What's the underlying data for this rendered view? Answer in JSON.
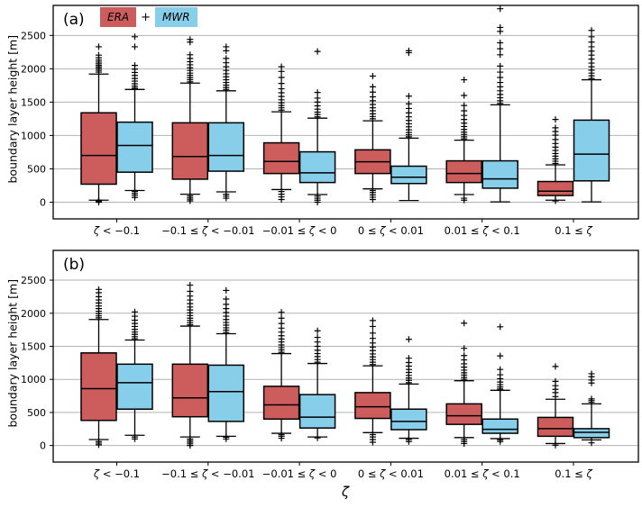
{
  "figure": {
    "background": "#ffffff",
    "colors": {
      "era": "#cd5c5c",
      "mwr": "#87ceeb",
      "grid": "#b2b2b2",
      "box_edge": "#000000",
      "text": "#000000"
    },
    "legend": {
      "era_label": "ERA",
      "plus": "+",
      "mwr_label": "MWR"
    }
  },
  "chart_data": [
    {
      "type": "boxplot",
      "panel_label": "(a)",
      "ylabel": "boundary layer height [m]",
      "xlabel": "",
      "ylim": [
        -250,
        2950
      ],
      "yticks": [
        0,
        500,
        1000,
        1500,
        2000,
        2500
      ],
      "grid": "horizontal",
      "categories": [
        "ζ < −0.1",
        "−0.1 ≤ ζ < −0.01",
        "−0.01 ≤ ζ < 0",
        "0 ≤ ζ < 0.01",
        "0.01 ≤ ζ < 0.1",
        "0.1 ≤ ζ"
      ],
      "series": [
        {
          "name": "ERA",
          "color": "#cd5c5c",
          "boxes": [
            {
              "whislo": 30,
              "q1": 270,
              "med": 700,
              "q3": 1340,
              "whishi": 1920,
              "fliers_high": [
                1950,
                1975,
                2000,
                2025,
                2050,
                2075,
                2100,
                2130,
                2165,
                2205,
                2330
              ],
              "fliers_low": [
                0,
                15,
                30
              ]
            },
            {
              "whislo": 120,
              "q1": 345,
              "med": 685,
              "q3": 1190,
              "whishi": 1785,
              "fliers_high": [
                1805,
                1835,
                1865,
                1900,
                1935,
                1975,
                2015,
                2060,
                2105,
                2155,
                2210,
                2400,
                2440
              ],
              "fliers_low": [
                20,
                45,
                70,
                95
              ]
            },
            {
              "whislo": 190,
              "q1": 430,
              "med": 610,
              "q3": 890,
              "whishi": 1355,
              "fliers_high": [
                1380,
                1415,
                1450,
                1490,
                1535,
                1585,
                1640,
                1700,
                1780,
                1870,
                1960,
                2030
              ],
              "fliers_low": [
                40,
                80,
                120,
                160
              ]
            },
            {
              "whislo": 200,
              "q1": 430,
              "med": 605,
              "q3": 785,
              "whishi": 1220,
              "fliers_high": [
                1250,
                1285,
                1325,
                1370,
                1415,
                1465,
                1520,
                1580,
                1650,
                1730,
                1890
              ],
              "fliers_low": [
                40,
                75,
                110,
                145,
                175
              ]
            },
            {
              "whislo": 115,
              "q1": 295,
              "med": 430,
              "q3": 620,
              "whishi": 930,
              "fliers_high": [
                950,
                980,
                1015,
                1050,
                1090,
                1135,
                1185,
                1240,
                1300,
                1370,
                1450,
                1600,
                1835
              ],
              "fliers_low": [
                30,
                60
              ]
            },
            {
              "whislo": 30,
              "q1": 100,
              "med": 165,
              "q3": 310,
              "whishi": 560,
              "fliers_high": [
                580,
                615,
                650,
                690,
                730,
                775,
                825,
                880,
                940,
                1005,
                1060,
                1115,
                1240
              ],
              "fliers_low": [
                20
              ]
            }
          ]
        },
        {
          "name": "MWR",
          "color": "#87ceeb",
          "boxes": [
            {
              "whislo": 175,
              "q1": 450,
              "med": 850,
              "q3": 1200,
              "whishi": 1690,
              "fliers_high": [
                1710,
                1740,
                1775,
                1815,
                1855,
                1900,
                1945,
                1995,
                2050,
                2330,
                2480
              ],
              "fliers_low": [
                70,
                100,
                130,
                160
              ]
            },
            {
              "whislo": 155,
              "q1": 465,
              "med": 700,
              "q3": 1190,
              "whishi": 1670,
              "fliers_high": [
                1690,
                1720,
                1755,
                1795,
                1835,
                1880,
                1925,
                1975,
                2030,
                2090,
                2155,
                2270,
                2330
              ],
              "fliers_low": [
                60,
                90,
                120
              ]
            },
            {
              "whislo": 115,
              "q1": 295,
              "med": 440,
              "q3": 755,
              "whishi": 1260,
              "fliers_high": [
                1280,
                1315,
                1350,
                1395,
                1445,
                1500,
                1560,
                1645,
                2260
              ],
              "fliers_low": [
                0,
                30,
                60,
                90
              ]
            },
            {
              "whislo": 25,
              "q1": 280,
              "med": 375,
              "q3": 540,
              "whishi": 960,
              "fliers_high": [
                980,
                1010,
                1045,
                1085,
                1130,
                1175,
                1225,
                1280,
                1340,
                1405,
                1475,
                1590,
                2240,
                2270
              ],
              "fliers_low": []
            },
            {
              "whislo": 5,
              "q1": 210,
              "med": 350,
              "q3": 620,
              "whishi": 1460,
              "fliers_high": [
                1480,
                1520,
                1565,
                1615,
                1670,
                1730,
                1795,
                1870,
                1950,
                2040,
                2210,
                2300,
                2390,
                2560,
                2620,
                2900
              ],
              "fliers_low": []
            },
            {
              "whislo": 5,
              "q1": 320,
              "med": 720,
              "q3": 1230,
              "whishi": 1835,
              "fliers_high": [
                1855,
                1895,
                1935,
                1980,
                2030,
                2085,
                2145,
                2205,
                2265,
                2330,
                2400,
                2480,
                2575
              ],
              "fliers_low": []
            }
          ]
        }
      ]
    },
    {
      "type": "boxplot",
      "panel_label": "(b)",
      "ylabel": "boundary layer height [m]",
      "xlabel": "ζ",
      "ylim": [
        -250,
        2950
      ],
      "yticks": [
        0,
        500,
        1000,
        1500,
        2000,
        2500
      ],
      "grid": "horizontal",
      "categories": [
        "ζ < −0.1",
        "−0.1 ≤ ζ < −0.01",
        "−0.01 ≤ ζ < 0",
        "0 ≤ ζ < 0.01",
        "0.01 ≤ ζ < 0.1",
        "0.1 ≤ ζ"
      ],
      "series": [
        {
          "name": "ERA",
          "color": "#cd5c5c",
          "boxes": [
            {
              "whislo": 90,
              "q1": 380,
              "med": 860,
              "q3": 1400,
              "whishi": 1905,
              "fliers_high": [
                1930,
                1960,
                1995,
                2030,
                2070,
                2110,
                2155,
                2200,
                2250,
                2310,
                2360
              ],
              "fliers_low": [
                10,
                35,
                60
              ]
            },
            {
              "whislo": 130,
              "q1": 435,
              "med": 720,
              "q3": 1230,
              "whishi": 1805,
              "fliers_high": [
                1825,
                1855,
                1890,
                1925,
                1965,
                2005,
                2050,
                2095,
                2145,
                2200,
                2260,
                2330,
                2425
              ],
              "fliers_low": [
                0,
                25,
                50,
                75,
                100
              ]
            },
            {
              "whislo": 185,
              "q1": 400,
              "med": 615,
              "q3": 895,
              "whishi": 1390,
              "fliers_high": [
                1410,
                1445,
                1480,
                1520,
                1565,
                1610,
                1660,
                1715,
                1775,
                1845,
                1925,
                2015
              ],
              "fliers_low": [
                110,
                140,
                165
              ]
            },
            {
              "whislo": 195,
              "q1": 410,
              "med": 585,
              "q3": 800,
              "whishi": 1205,
              "fliers_high": [
                1225,
                1260,
                1300,
                1340,
                1385,
                1435,
                1490,
                1550,
                1620,
                1700,
                1800,
                1890
              ],
              "fliers_low": [
                50,
                90,
                130,
                165
              ]
            },
            {
              "whislo": 120,
              "q1": 320,
              "med": 450,
              "q3": 630,
              "whishi": 980,
              "fliers_high": [
                1000,
                1030,
                1065,
                1100,
                1140,
                1185,
                1235,
                1295,
                1360,
                1470,
                1850
              ],
              "fliers_low": [
                30,
                60,
                90
              ]
            },
            {
              "whislo": 30,
              "q1": 140,
              "med": 255,
              "q3": 425,
              "whishi": 700,
              "fliers_high": [
                740,
                800,
                850,
                905,
                970,
                1195
              ],
              "fliers_low": [
                5
              ]
            }
          ]
        },
        {
          "name": "MWR",
          "color": "#87ceeb",
          "boxes": [
            {
              "whislo": 155,
              "q1": 550,
              "med": 950,
              "q3": 1230,
              "whishi": 1595,
              "fliers_high": [
                1615,
                1645,
                1680,
                1715,
                1755,
                1800,
                1845,
                1895,
                1955,
                2020
              ],
              "fliers_low": [
                100,
                130
              ]
            },
            {
              "whislo": 140,
              "q1": 365,
              "med": 815,
              "q3": 1215,
              "whishi": 1690,
              "fliers_high": [
                1710,
                1745,
                1780,
                1820,
                1860,
                1905,
                1955,
                2010,
                2070,
                2135,
                2215,
                2345
              ],
              "fliers_low": [
                100,
                125
              ]
            },
            {
              "whislo": 130,
              "q1": 265,
              "med": 430,
              "q3": 770,
              "whishi": 1240,
              "fliers_high": [
                1260,
                1300,
                1345,
                1390,
                1440,
                1500,
                1565,
                1635,
                1735
              ],
              "fliers_low": [
                115
              ]
            },
            {
              "whislo": 110,
              "q1": 240,
              "med": 365,
              "q3": 550,
              "whishi": 930,
              "fliers_high": [
                950,
                985,
                1020,
                1060,
                1105,
                1150,
                1200,
                1255,
                1320,
                1605
              ],
              "fliers_low": [
                60,
                90
              ]
            },
            {
              "whislo": 105,
              "q1": 185,
              "med": 245,
              "q3": 400,
              "whishi": 835,
              "fliers_high": [
                855,
                885,
                920,
                960,
                1010,
                1070,
                1150,
                1355,
                1795
              ],
              "fliers_low": [
                60,
                85
              ]
            },
            {
              "whislo": 85,
              "q1": 120,
              "med": 200,
              "q3": 255,
              "whishi": 630,
              "fliers_high": [
                655,
                680,
                705,
                945,
                990,
                1040,
                1085
              ],
              "fliers_low": [
                40
              ]
            }
          ]
        }
      ]
    }
  ]
}
